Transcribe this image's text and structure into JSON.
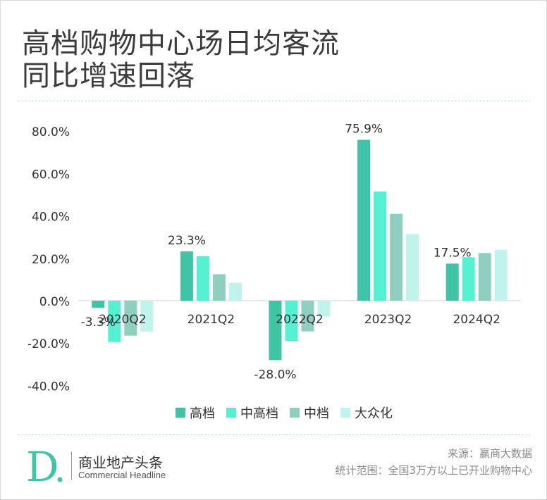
{
  "title_line1": "高档购物中心场日均客流",
  "title_line2": "同比增速回落",
  "brand": {
    "name_cn": "商业地产头条",
    "name_en": "Commercial Headline",
    "logo_letter": "D"
  },
  "footer": {
    "source": "来源：赢商大数据",
    "scope": "统计范围：全国3万方以上已开业购物中心"
  },
  "colors": {
    "高档": "#40c4a6",
    "中高档": "#54f0d2",
    "中档": "#8ecfbf",
    "大众化": "#bff3ec"
  },
  "chart_data": {
    "type": "bar",
    "title": "高档购物中心场日均客流 同比增速回落",
    "categories": [
      "2020Q2",
      "2021Q2",
      "2022Q2",
      "2023Q2",
      "2024Q2"
    ],
    "series": [
      {
        "name": "高档",
        "values": [
          -3.3,
          23.3,
          -28.0,
          75.9,
          17.5
        ]
      },
      {
        "name": "中高档",
        "values": [
          -19.5,
          21.0,
          -19.0,
          51.5,
          20.5
        ]
      },
      {
        "name": "中档",
        "values": [
          -16.5,
          12.5,
          -14.5,
          41.0,
          22.5
        ]
      },
      {
        "name": "大众化",
        "values": [
          -14.5,
          8.5,
          -7.5,
          31.5,
          24.0
        ]
      }
    ],
    "data_labels": [
      "-3.3%",
      "23.3%",
      "-28.0%",
      "75.9%",
      "17.5%"
    ],
    "yticks": [
      "80.0%",
      "60.0%",
      "40.0%",
      "20.0%",
      "0.0%",
      "-20.0%",
      "-40.0%"
    ],
    "ylim": [
      -40,
      80
    ],
    "legend": [
      "高档",
      "中高档",
      "中档",
      "大众化"
    ],
    "legend_position": "bottom",
    "grid": false
  }
}
